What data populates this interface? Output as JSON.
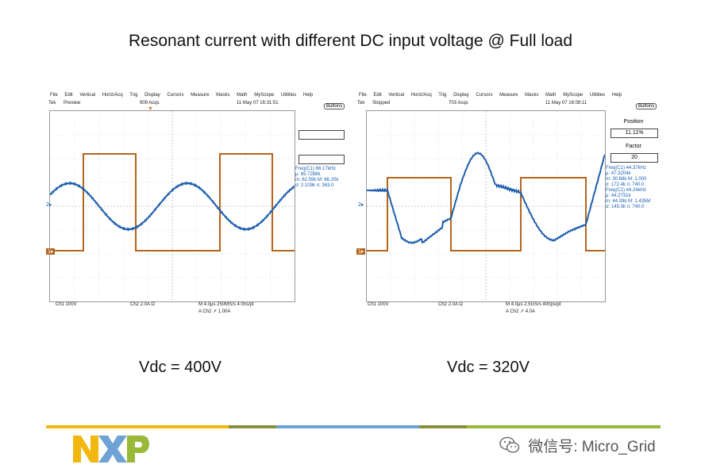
{
  "title": "Resonant current with different DC input voltage @ Full load",
  "scopes": [
    {
      "menu": [
        "File",
        "Edit",
        "Vertical",
        "Horiz/Acq",
        "Trig",
        "Display",
        "Cursors",
        "Measure",
        "Masks",
        "Math",
        "MyScope",
        "Utilities",
        "Help"
      ],
      "brand": "Tek",
      "mode": "Preview",
      "acqs": "909 Acqs",
      "datetime": "11 May 07 16:31:51",
      "buttons_label": "Buttons",
      "bottom_left": "Ch1   100V",
      "bottom_mid": "Ch2   2.0A   Ω",
      "bottom_timebase": "M 4.0μs 250MS/s    4.0ns/pt",
      "bottom_trigger": "A  Ch2  ↗  1.00A",
      "measurements": [
        "Freq(C1)     66.17kHz",
        "μ: 65.7288k",
        "m: 62.59k     M: 66.20k",
        "σ: 2.109k     n: 363.0"
      ],
      "caption": "Vdc = 400V"
    },
    {
      "menu": [
        "File",
        "Edit",
        "Vertical",
        "Horiz/Acq",
        "Trig",
        "Display",
        "Cursors",
        "Measure",
        "Masks",
        "Math",
        "MyScope",
        "Utilities",
        "Help"
      ],
      "brand": "Tek",
      "mode": "Stopped",
      "acqs": "703 Acqs",
      "datetime": "11 May 07 16:08:11",
      "buttons_label": "Buttons",
      "position_label": "Position",
      "position_value": "11.11%",
      "factor_label": "Factor",
      "factor_value": "20",
      "bottom_left": "Ch1   100V",
      "bottom_mid": "Ch2   2.0A   Ω",
      "bottom_timebase": "M 4.0μs 2.5GS/s    400ps/pt",
      "bottom_trigger": "A  Ch2  ↗  4.0A",
      "measurements": [
        "Freq(C1)     44.37kHz",
        "μ: 47.3204k",
        "m: 30.68k     M: 1.000",
        "σ: 172.4k     n: 740.0",
        "Freq(C1)     44.24kHz",
        "μ: 44.2731k",
        "m: 44.09k     M: 1.435M",
        "σ: 145.0k     n: 740.0"
      ],
      "caption": "Vdc = 320V"
    }
  ],
  "colors": {
    "square_wave": "#b5651d",
    "sine_wave": "#1f5fad",
    "footer_yellow": "#f2b80f",
    "footer_olive": "#8a8f3a",
    "footer_blue": "#6fa3d6",
    "footer_green": "#9ab83a"
  },
  "logo_text": "NXP",
  "watermark": "微信号: Micro_Grid"
}
